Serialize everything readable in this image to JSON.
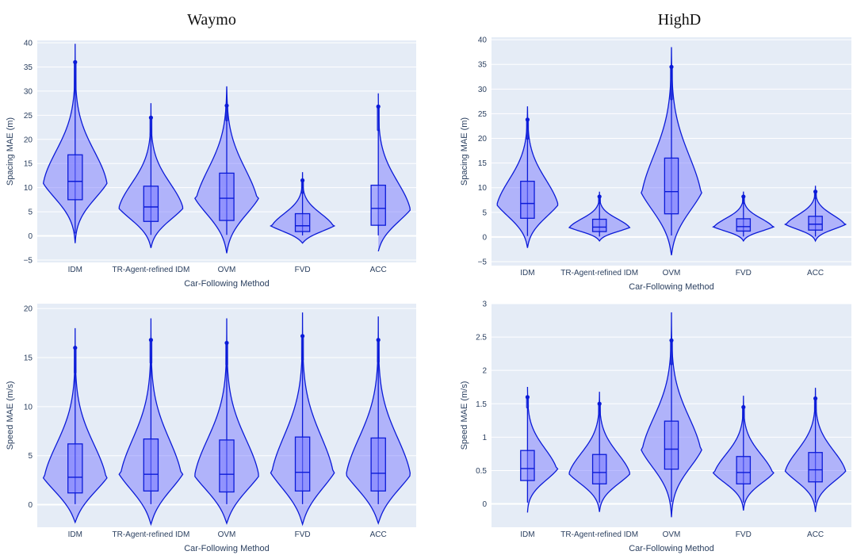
{
  "column_titles": [
    "Waymo",
    "HighD"
  ],
  "chart_data": [
    {
      "type": "violin",
      "dataset": "Waymo",
      "xlabel": "Car-Following Method",
      "ylabel": "Spacing MAE (m)",
      "ylim": [
        -5.5,
        40.5
      ],
      "yticks": [
        -5,
        0,
        5,
        10,
        15,
        20,
        25,
        30,
        35,
        40
      ],
      "categories": [
        "IDM",
        "TR-Agent-refined IDM",
        "OVM",
        "FVD",
        "ACC"
      ],
      "series": [
        {
          "name": "IDM",
          "min": -1.5,
          "max": 39.8,
          "q1": 7.5,
          "median": 11.3,
          "q3": 16.8,
          "whisker_low": 0.5,
          "whisker_high": 30.5,
          "outlier_top": 36
        },
        {
          "name": "TR-Agent-refined IDM",
          "min": -2.5,
          "max": 27.5,
          "q1": 3,
          "median": 6,
          "q3": 10.3,
          "whisker_low": 0.2,
          "whisker_high": 21,
          "outlier_top": 24.5
        },
        {
          "name": "OVM",
          "min": -3.6,
          "max": 31,
          "q1": 3.2,
          "median": 7.8,
          "q3": 13,
          "whisker_low": 0.2,
          "whisker_high": 24,
          "outlier_top": 27
        },
        {
          "name": "FVD",
          "min": -1.5,
          "max": 13.2,
          "q1": 0.9,
          "median": 2.1,
          "q3": 4.6,
          "whisker_low": 0.1,
          "whisker_high": 9,
          "outlier_top": 11.5
        },
        {
          "name": "ACC",
          "min": -3.2,
          "max": 30,
          "q1": 2.2,
          "median": 5.7,
          "q3": 10.5,
          "whisker_low": 0.1,
          "whisker_high": 22,
          "outlier_top": 26.8
        }
      ]
    },
    {
      "type": "violin",
      "dataset": "HighD",
      "xlabel": "Car-Following Method",
      "ylabel": "Spacing MAE (m)",
      "ylim": [
        -5.8,
        40.5
      ],
      "yticks": [
        -5,
        0,
        5,
        10,
        15,
        20,
        25,
        30,
        35,
        40
      ],
      "categories": [
        "IDM",
        "TR-Agent-refined IDM",
        "OVM",
        "FVD",
        "ACC"
      ],
      "series": [
        {
          "name": "IDM",
          "min": -2.2,
          "max": 26.5,
          "q1": 3.8,
          "median": 6.8,
          "q3": 11.3,
          "whisker_low": 0.2,
          "whisker_high": 20,
          "outlier_top": 23.8
        },
        {
          "name": "TR-Agent-refined IDM",
          "min": -0.8,
          "max": 9.2,
          "q1": 1.1,
          "median": 2,
          "q3": 3.6,
          "whisker_low": 0.1,
          "whisker_high": 7,
          "outlier_top": 8.2
        },
        {
          "name": "OVM",
          "min": -3.7,
          "max": 38.5,
          "q1": 4.7,
          "median": 9.2,
          "q3": 16,
          "whisker_low": 0.3,
          "whisker_high": 28,
          "outlier_top": 34.5
        },
        {
          "name": "FVD",
          "min": -0.8,
          "max": 9.2,
          "q1": 1.2,
          "median": 2.1,
          "q3": 3.7,
          "whisker_low": 0.1,
          "whisker_high": 7,
          "outlier_top": 8.2
        },
        {
          "name": "ACC",
          "min": -0.8,
          "max": 10.4,
          "q1": 1.4,
          "median": 2.6,
          "q3": 4.2,
          "whisker_low": 0.1,
          "whisker_high": 8,
          "outlier_top": 9.2
        }
      ]
    },
    {
      "type": "violin",
      "dataset": "Waymo",
      "xlabel": "Car-Following Method",
      "ylabel": "Speed MAE (m/s)",
      "ylim": [
        -2.3,
        20.5
      ],
      "yticks": [
        0,
        5,
        10,
        15,
        20
      ],
      "categories": [
        "IDM",
        "TR-Agent-refined IDM",
        "OVM",
        "FVD",
        "ACC"
      ],
      "series": [
        {
          "name": "IDM",
          "min": -1.8,
          "max": 18,
          "q1": 1.2,
          "median": 2.8,
          "q3": 6.2,
          "whisker_low": 0.05,
          "whisker_high": 13.5,
          "outlier_top": 16
        },
        {
          "name": "TR-Agent-refined IDM",
          "min": -2,
          "max": 19,
          "q1": 1.4,
          "median": 3.1,
          "q3": 6.7,
          "whisker_low": 0.05,
          "whisker_high": 14.5,
          "outlier_top": 16.8
        },
        {
          "name": "OVM",
          "min": -1.9,
          "max": 19,
          "q1": 1.3,
          "median": 3.1,
          "q3": 6.6,
          "whisker_low": 0.05,
          "whisker_high": 14.3,
          "outlier_top": 16.5
        },
        {
          "name": "FVD",
          "min": -2,
          "max": 19.6,
          "q1": 1.4,
          "median": 3.3,
          "q3": 6.9,
          "whisker_low": 0.05,
          "whisker_high": 14.8,
          "outlier_top": 17.2
        },
        {
          "name": "ACC",
          "min": -1.9,
          "max": 19.2,
          "q1": 1.4,
          "median": 3.2,
          "q3": 6.8,
          "whisker_low": 0.05,
          "whisker_high": 14.6,
          "outlier_top": 16.8
        }
      ]
    },
    {
      "type": "violin",
      "dataset": "HighD",
      "xlabel": "Car-Following Method",
      "ylabel": "Speed MAE (m/s)",
      "ylim": [
        -0.35,
        3.0
      ],
      "yticks": [
        0,
        0.5,
        1,
        1.5,
        2,
        2.5,
        3
      ],
      "categories": [
        "IDM",
        "TR-Agent-refined IDM",
        "OVM",
        "FVD",
        "ACC"
      ],
      "series": [
        {
          "name": "IDM",
          "min": -0.13,
          "max": 1.78,
          "q1": 0.35,
          "median": 0.53,
          "q3": 0.8,
          "whisker_low": 0.02,
          "whisker_high": 1.45,
          "outlier_top": 1.6
        },
        {
          "name": "TR-Agent-refined IDM",
          "min": -0.12,
          "max": 1.68,
          "q1": 0.3,
          "median": 0.47,
          "q3": 0.74,
          "whisker_low": 0.02,
          "whisker_high": 1.35,
          "outlier_top": 1.5
        },
        {
          "name": "OVM",
          "min": -0.2,
          "max": 2.87,
          "q1": 0.52,
          "median": 0.82,
          "q3": 1.24,
          "whisker_low": 0.03,
          "whisker_high": 2.1,
          "outlier_top": 2.45
        },
        {
          "name": "FVD",
          "min": -0.1,
          "max": 1.62,
          "q1": 0.3,
          "median": 0.47,
          "q3": 0.71,
          "whisker_low": 0.02,
          "whisker_high": 1.3,
          "outlier_top": 1.45
        },
        {
          "name": "ACC",
          "min": -0.12,
          "max": 1.74,
          "q1": 0.33,
          "median": 0.51,
          "q3": 0.77,
          "whisker_low": 0.02,
          "whisker_high": 1.4,
          "outlier_top": 1.58
        }
      ]
    }
  ]
}
